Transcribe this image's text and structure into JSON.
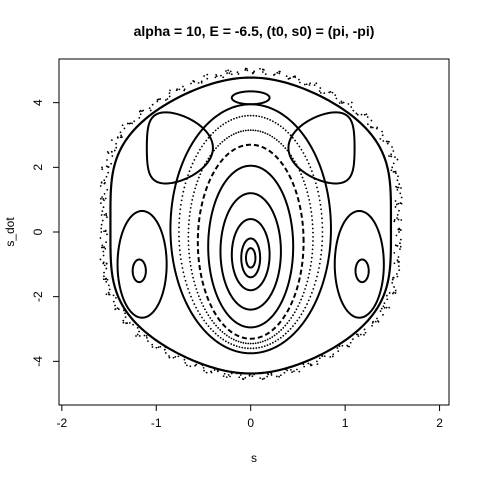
{
  "chart_data": {
    "type": "scatter",
    "title": "alpha = 10, E = -6.5, (t0, s0) = (pi, -pi)",
    "xlabel": "s",
    "ylabel": "s_dot",
    "xlim": [
      -2.03,
      2.1
    ],
    "ylim": [
      -5.35,
      5.35
    ],
    "xticks": [
      -2,
      -1,
      0,
      1,
      2
    ],
    "yticks": [
      -4,
      -2,
      0,
      2,
      4
    ],
    "grid": false,
    "legend": "none",
    "point_color": "#000000",
    "series": [
      {
        "kind": "center-island",
        "cx": 0.0,
        "cy": -0.8,
        "rx": 0.05,
        "ry": 0.3,
        "style": "line"
      },
      {
        "kind": "center-island",
        "cx": 0.0,
        "cy": -0.8,
        "rx": 0.1,
        "ry": 0.6,
        "style": "line"
      },
      {
        "kind": "center-island",
        "cx": 0.0,
        "cy": -0.7,
        "rx": 0.2,
        "ry": 1.1,
        "style": "line"
      },
      {
        "kind": "center-island",
        "cx": 0.0,
        "cy": -0.6,
        "rx": 0.32,
        "ry": 1.8,
        "style": "line"
      },
      {
        "kind": "center-island",
        "cx": 0.0,
        "cy": -0.45,
        "rx": 0.45,
        "ry": 2.5,
        "style": "line"
      },
      {
        "kind": "center-island",
        "cx": 0.0,
        "cy": -0.3,
        "rx": 0.56,
        "ry": 3.0,
        "style": "dash"
      },
      {
        "kind": "center-island",
        "cx": 0.0,
        "cy": -0.15,
        "rx": 0.66,
        "ry": 3.3,
        "style": "dots"
      },
      {
        "kind": "center-island",
        "cx": 0.0,
        "cy": 0.0,
        "rx": 0.76,
        "ry": 3.6,
        "style": "dots"
      },
      {
        "kind": "center-island",
        "cx": 0.0,
        "cy": 0.1,
        "rx": 0.85,
        "ry": 3.85,
        "style": "line"
      },
      {
        "kind": "separatrix",
        "rx": 1.58,
        "ry": 4.4,
        "cy": 0.2,
        "style": "line"
      },
      {
        "kind": "separatrix",
        "rx": 1.66,
        "ry": 4.55,
        "cy": 0.25,
        "style": "scatter"
      },
      {
        "kind": "top-island",
        "cx": 0.0,
        "cy": 4.15,
        "rx": 0.2,
        "ry": 0.2,
        "style": "line"
      },
      {
        "kind": "side-island",
        "cx": -1.18,
        "cy": -1.2,
        "rx": 0.07,
        "ry": 0.35,
        "style": "line"
      },
      {
        "kind": "side-island",
        "cx": -1.15,
        "cy": -1.0,
        "rx": 0.26,
        "ry": 1.65,
        "style": "line"
      },
      {
        "kind": "side-island",
        "cx": 1.18,
        "cy": -1.2,
        "rx": 0.07,
        "ry": 0.35,
        "style": "line"
      },
      {
        "kind": "side-island",
        "cx": 1.15,
        "cy": -1.0,
        "rx": 0.26,
        "ry": 1.65,
        "style": "line"
      },
      {
        "kind": "crescent",
        "cx": -0.75,
        "cy": 2.6,
        "rx": 0.35,
        "ry": 1.1,
        "style": "line"
      },
      {
        "kind": "crescent",
        "cx": 0.75,
        "cy": 2.6,
        "rx": 0.35,
        "ry": 1.1,
        "style": "line"
      }
    ]
  }
}
